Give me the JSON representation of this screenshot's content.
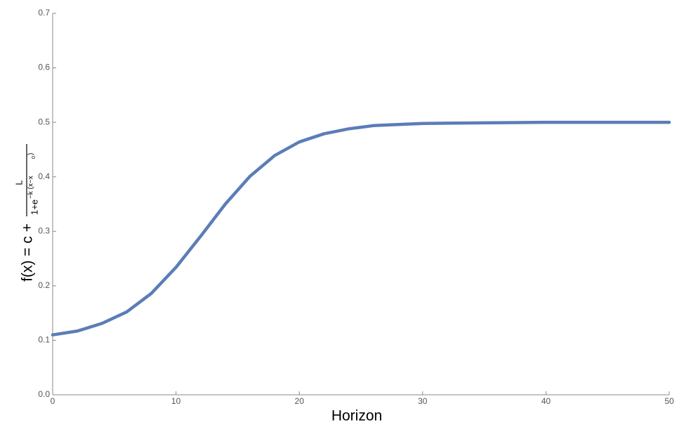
{
  "chart_data": {
    "type": "line",
    "x_label": "Horizon",
    "y_label": {
      "lhs": "f(x) = c +",
      "numerator": "L",
      "denominator": "1+e",
      "exponent": "−k (x−x",
      "subscript": "0",
      "close": ")"
    },
    "x": [
      0,
      2,
      4,
      6,
      8,
      10,
      12,
      14,
      16,
      18,
      20,
      22,
      24,
      26,
      28,
      30,
      35,
      40,
      45,
      50
    ],
    "series": [
      {
        "color": "#5b7db8",
        "values": [
          0.11,
          0.117,
          0.131,
          0.152,
          0.186,
          0.234,
          0.291,
          0.35,
          0.401,
          0.439,
          0.464,
          0.479,
          0.488,
          0.494,
          0.496,
          0.498,
          0.499,
          0.5,
          0.5,
          0.5
        ]
      }
    ],
    "xlim": [
      0,
      50
    ],
    "xticks": [
      0,
      10,
      20,
      30,
      40,
      50
    ],
    "ylim": [
      0,
      0.7
    ],
    "yticks": [
      {
        "value": 0,
        "label": "0.0"
      },
      0.1,
      0.2,
      0.3,
      0.4,
      0.5,
      0.6,
      0.7
    ],
    "grid": false
  }
}
